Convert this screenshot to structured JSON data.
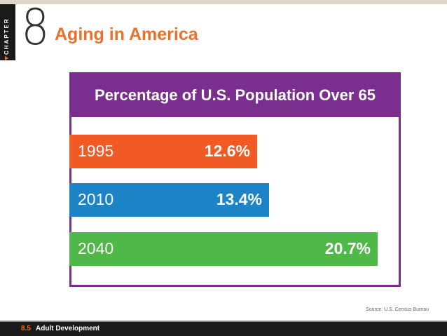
{
  "slide": {
    "side_tab": "CHAPTER",
    "chapter_number": "8",
    "title": "Aging in America",
    "source": "Source: U.S. Census Bureau",
    "footer_page": "8.5",
    "footer_course": "Adult Development"
  },
  "colors": {
    "accent": "#e8722b",
    "frame": "#7a2e8e",
    "bar_1995": "#f15a24",
    "bar_2010": "#1c84c6",
    "bar_2040": "#4fb848"
  },
  "chart_data": {
    "type": "bar",
    "orientation": "horizontal",
    "title": "Percentage of U.S. Population Over 65",
    "categories": [
      "1995",
      "2010",
      "2040"
    ],
    "values": [
      12.6,
      13.4,
      20.7
    ],
    "value_labels": [
      "12.6%",
      "13.4%",
      "20.7%"
    ],
    "colors": [
      "#f15a24",
      "#1c84c6",
      "#4fb848"
    ],
    "xlim": [
      0,
      20.7
    ],
    "xlabel": "",
    "ylabel": ""
  }
}
